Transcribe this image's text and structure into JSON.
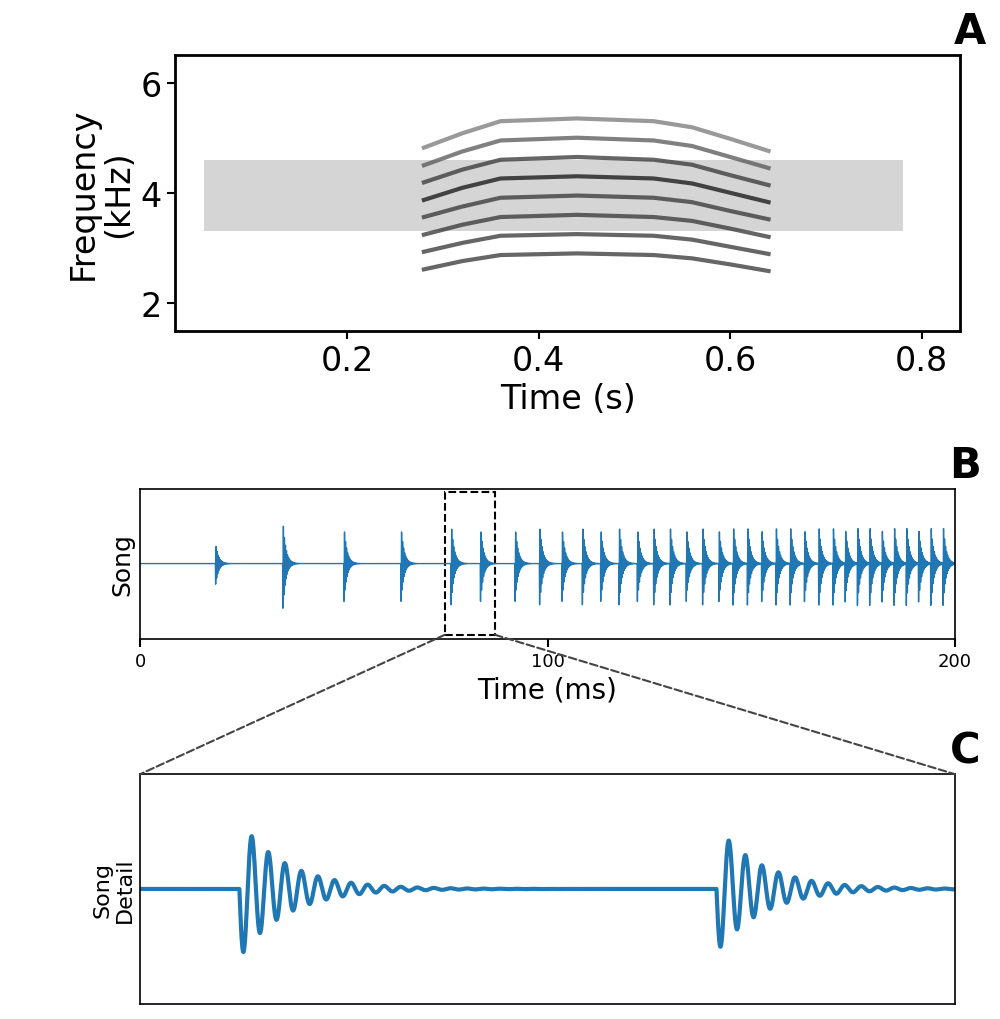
{
  "chart_data": [
    {
      "panel": "A",
      "type": "line",
      "xlabel": "Time (s)",
      "ylabel": "Frequency\n(kHz)",
      "x": [
        0.28,
        0.32,
        0.36,
        0.44,
        0.52,
        0.56,
        0.6,
        0.64
      ],
      "series": [
        {
          "color": "#333333",
          "values": [
            2.61,
            2.76,
            2.87,
            2.9,
            2.87,
            2.81,
            2.7,
            2.58
          ]
        },
        {
          "color": "#333333",
          "values": [
            2.93,
            3.09,
            3.22,
            3.25,
            3.22,
            3.15,
            3.02,
            2.89
          ]
        },
        {
          "color": "#333333",
          "values": [
            3.24,
            3.42,
            3.56,
            3.6,
            3.56,
            3.49,
            3.35,
            3.2
          ]
        },
        {
          "color": "#333333",
          "values": [
            3.56,
            3.75,
            3.91,
            3.95,
            3.91,
            3.83,
            3.67,
            3.52
          ]
        },
        {
          "color": "#111111",
          "values": [
            3.87,
            4.09,
            4.26,
            4.3,
            4.26,
            4.17,
            4.0,
            3.83
          ]
        },
        {
          "color": "#333333",
          "values": [
            4.19,
            4.42,
            4.6,
            4.65,
            4.6,
            4.51,
            4.32,
            4.14
          ]
        },
        {
          "color": "#555555",
          "values": [
            4.5,
            4.75,
            4.95,
            5.0,
            4.95,
            4.85,
            4.65,
            4.45
          ]
        },
        {
          "color": "#777777",
          "values": [
            4.82,
            5.08,
            5.3,
            5.35,
            5.3,
            5.19,
            4.98,
            4.76
          ]
        }
      ],
      "energy_band": {
        "time": [
          0.05,
          0.78
        ],
        "frequency": [
          3.3,
          4.6
        ]
      },
      "xlim": [
        0.02,
        0.84
      ],
      "xticks": [
        0.2,
        0.4,
        0.6,
        0.8
      ],
      "ylim": [
        1.5,
        6.5
      ],
      "yticks": [
        2,
        4,
        6
      ]
    },
    {
      "panel": "B",
      "type": "pulse",
      "xlabel": "Time (ms)",
      "ylabel": "Song",
      "color": "#1f77b4",
      "x": [
        18.5,
        35,
        50,
        64,
        76.3,
        83.5,
        92,
        98,
        103.5,
        108.5,
        113,
        117.5,
        122,
        126,
        130,
        134,
        138,
        142,
        145.5,
        149,
        152.5,
        156,
        159.5,
        163,
        166.5,
        170,
        173,
        176,
        179,
        182,
        185,
        188,
        191,
        194,
        197
      ],
      "values": [
        0.3,
        0.65,
        0.55,
        0.55,
        0.6,
        0.55,
        0.55,
        0.6,
        0.55,
        0.6,
        0.55,
        0.6,
        0.55,
        0.6,
        0.6,
        0.55,
        0.6,
        0.55,
        0.6,
        0.6,
        0.55,
        0.6,
        0.6,
        0.55,
        0.6,
        0.6,
        0.55,
        0.6,
        0.6,
        0.55,
        0.6,
        0.6,
        0.55,
        0.6,
        0.6
      ],
      "zoom": [
        74.8,
        87.1
      ],
      "xlim": [
        0,
        200
      ],
      "xticks": [
        0,
        100,
        200
      ],
      "ylim": [
        -1,
        1
      ],
      "tick_labels": "x"
    },
    {
      "panel": "C",
      "type": "pulse",
      "ylabel": "Song\nDetail",
      "color": "#1f77b4",
      "x": [
        76.3,
        83.5
      ],
      "values": [
        0.6,
        0.55
      ],
      "xlim": [
        74.8,
        87.1
      ],
      "ylim": [
        -1,
        1
      ],
      "tick_labels": false
    }
  ]
}
